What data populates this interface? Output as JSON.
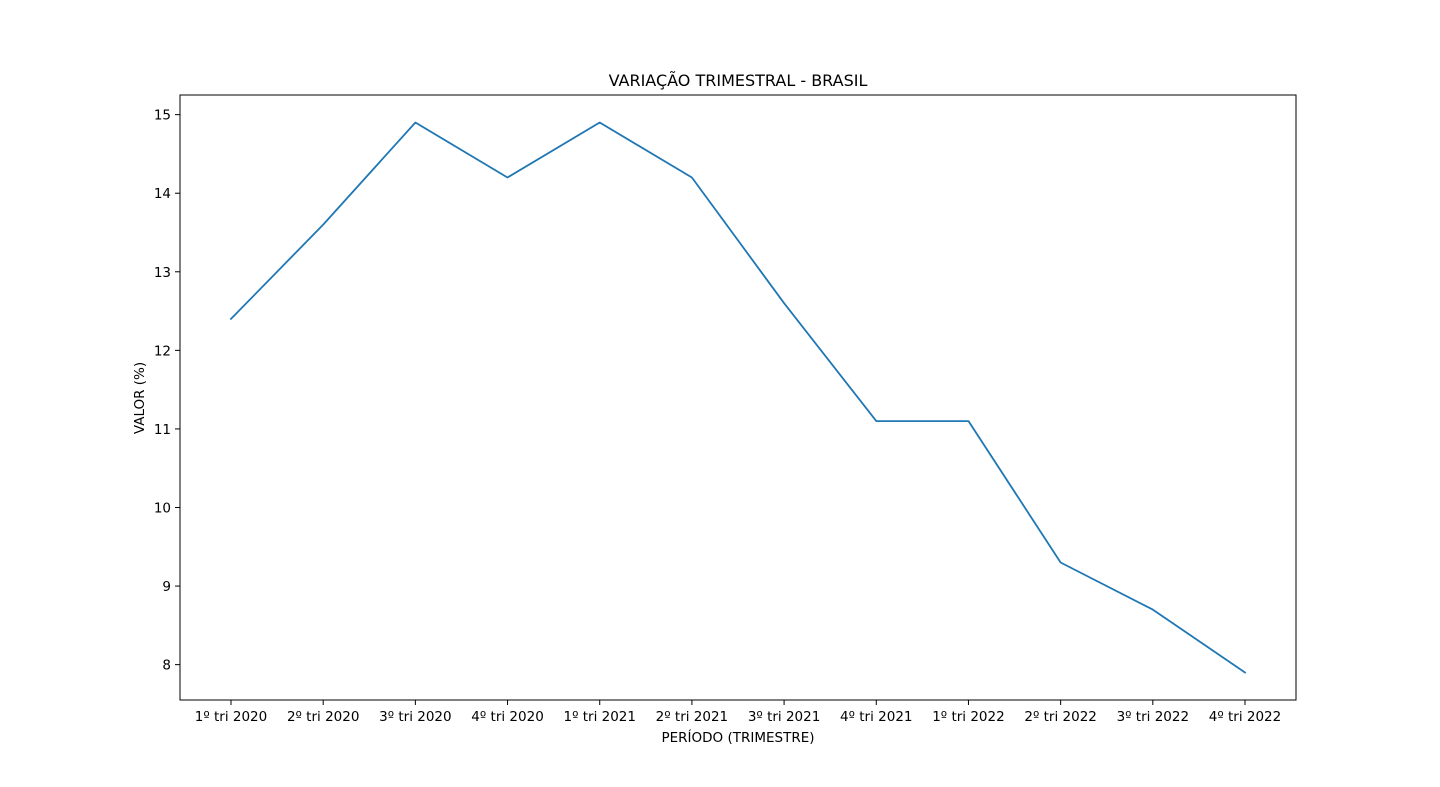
{
  "chart_data": {
    "type": "line",
    "title": "VARIAÇÃO TRIMESTRAL - BRASIL",
    "xlabel": "PERÍODO (TRIMESTRE)",
    "ylabel": "VALOR (%)",
    "categories": [
      "1º tri 2020",
      "2º tri 2020",
      "3º tri 2020",
      "4º tri 2020",
      "1º tri 2021",
      "2º tri 2021",
      "3º tri 2021",
      "4º tri 2021",
      "1º tri 2022",
      "2º tri 2022",
      "3º tri 2022",
      "4º tri 2022"
    ],
    "series": [
      {
        "values": [
          12.4,
          13.6,
          14.9,
          14.2,
          14.9,
          14.2,
          12.6,
          11.1,
          11.1,
          9.3,
          8.7,
          7.9
        ],
        "color": "#1f77b4"
      }
    ],
    "yticks": [
      "8",
      "9",
      "10",
      "11",
      "12",
      "13",
      "14",
      "15"
    ],
    "ylim": [
      7.55,
      15.25
    ],
    "grid": false,
    "legend": "none"
  }
}
